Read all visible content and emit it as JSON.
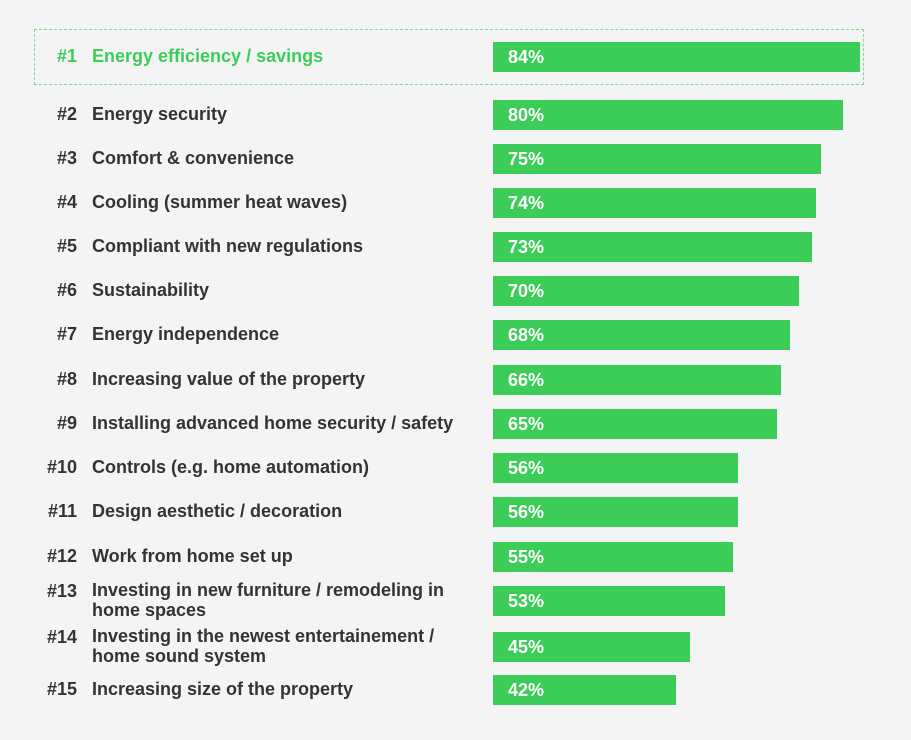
{
  "chart_data": {
    "type": "bar",
    "orientation": "horizontal",
    "title": "",
    "xlabel": "",
    "ylabel": "",
    "xlim": [
      0,
      100
    ],
    "highlight_rank": 1,
    "accent_color": "#3ccd58",
    "highlight_border_color": "#7fd98f",
    "text_color": "#333333",
    "items": [
      {
        "rank": "#1",
        "label": "Energy efficiency / savings",
        "value": 84,
        "value_label": "84%"
      },
      {
        "rank": "#2",
        "label": "Energy security",
        "value": 80,
        "value_label": "80%"
      },
      {
        "rank": "#3",
        "label": "Comfort & convenience",
        "value": 75,
        "value_label": "75%"
      },
      {
        "rank": "#4",
        "label": "Cooling (summer heat waves)",
        "value": 74,
        "value_label": "74%"
      },
      {
        "rank": "#5",
        "label": "Compliant with new regulations",
        "value": 73,
        "value_label": "73%"
      },
      {
        "rank": "#6",
        "label": "Sustainability",
        "value": 70,
        "value_label": "70%"
      },
      {
        "rank": "#7",
        "label": "Energy independence",
        "value": 68,
        "value_label": "68%"
      },
      {
        "rank": "#8",
        "label": "Increasing value of the property",
        "value": 66,
        "value_label": "66%"
      },
      {
        "rank": "#9",
        "label": "Installing advanced home security / safety",
        "value": 65,
        "value_label": "65%"
      },
      {
        "rank": "#10",
        "label": "Controls (e.g. home automation)",
        "value": 56,
        "value_label": "56%"
      },
      {
        "rank": "#11",
        "label": "Design aesthetic / decoration",
        "value": 56,
        "value_label": "56%"
      },
      {
        "rank": "#12",
        "label": "Work from home set up",
        "value": 55,
        "value_label": "55%"
      },
      {
        "rank": "#13",
        "label": "Investing in new furniture / remodeling in home spaces",
        "value": 53,
        "value_label": "53%"
      },
      {
        "rank": "#14",
        "label": "Investing in the newest entertainement / home sound system",
        "value": 45,
        "value_label": "45%"
      },
      {
        "rank": "#15",
        "label": "Increasing size of the property",
        "value": 42,
        "value_label": "42%"
      }
    ]
  }
}
